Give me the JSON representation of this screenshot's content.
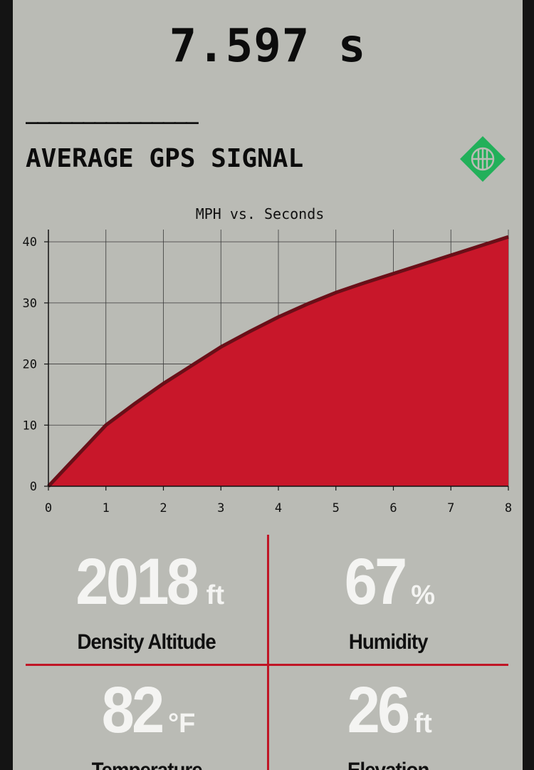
{
  "run_time": "7.597 s",
  "divider_text": "_______________",
  "section_title": "AVERAGE GPS SIGNAL",
  "badge_icon": "gps-signal-icon",
  "colors": {
    "area_fill": "#c8172a",
    "area_edge": "#6a0f18",
    "accent": "#c01525",
    "badge": "#22b05a",
    "background": "#babbb5"
  },
  "chart_data": {
    "type": "area",
    "title": "MPH vs. Seconds",
    "xlabel": "",
    "ylabel": "",
    "xlim": [
      0,
      8
    ],
    "ylim": [
      0,
      42
    ],
    "xticks": [
      0,
      1,
      2,
      3,
      4,
      5,
      6,
      7,
      8
    ],
    "yticks": [
      0,
      10,
      20,
      30,
      40
    ],
    "grid": true,
    "series": [
      {
        "x": [
          0,
          0.5,
          1,
          1.5,
          2,
          2.5,
          3,
          3.5,
          4,
          4.5,
          5,
          5.5,
          6,
          6.5,
          7,
          7.5,
          8
        ],
        "y": [
          0,
          5,
          10,
          13.5,
          16.8,
          19.8,
          22.8,
          25.3,
          27.7,
          29.8,
          31.7,
          33.3,
          34.8,
          36.3,
          37.8,
          39.3,
          40.8
        ]
      }
    ]
  },
  "stats": [
    {
      "value": "2018",
      "unit": "ft",
      "label": "Density Altitude"
    },
    {
      "value": "67",
      "unit": "%",
      "label": "Humidity"
    },
    {
      "value": "82",
      "unit": "°F",
      "label": "Temperature"
    },
    {
      "value": "26",
      "unit": "ft",
      "label": "Elevation"
    }
  ]
}
